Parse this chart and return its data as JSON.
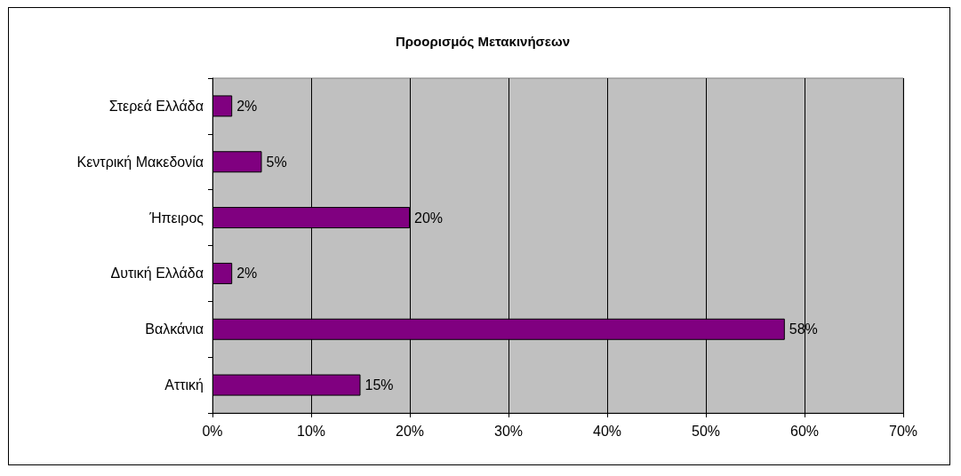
{
  "chart_data": {
    "type": "bar",
    "orientation": "horizontal",
    "title": "Προορισμός Μετακινήσεων",
    "categories": [
      "Στερεά Ελλάδα",
      "Κεντρική Μακεδονία",
      "Ήπειρος",
      "Δυτική Ελλάδα",
      "Βαλκάνια",
      "Αττική"
    ],
    "values": [
      2,
      5,
      20,
      2,
      58,
      15
    ],
    "value_labels": [
      "2%",
      "5%",
      "20%",
      "2%",
      "58%",
      "15%"
    ],
    "color": "#800080",
    "xlim": [
      0,
      70
    ],
    "xticks": [
      {
        "value": 0,
        "label": "0%"
      },
      {
        "value": 10,
        "label": "10%"
      },
      {
        "value": 20,
        "label": "20%"
      },
      {
        "value": 30,
        "label": "30%"
      },
      {
        "value": 40,
        "label": "40%"
      },
      {
        "value": 50,
        "label": "50%"
      },
      {
        "value": 60,
        "label": "60%"
      },
      {
        "value": 70,
        "label": "70%"
      }
    ],
    "grid": "x"
  }
}
